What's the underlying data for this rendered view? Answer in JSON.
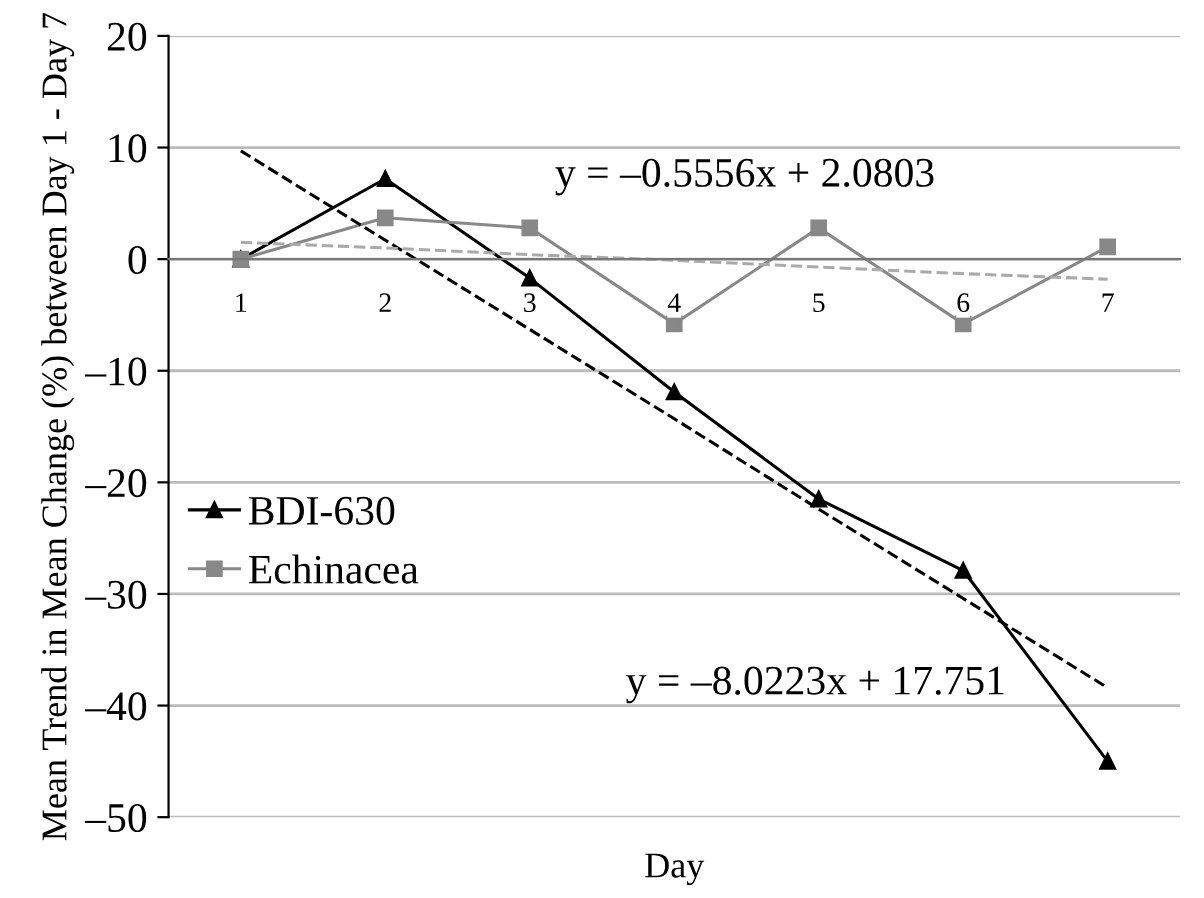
{
  "chart_data": {
    "type": "line",
    "xlabel": "Day",
    "ylabel": "Mean Trend in Mean Change (%) between Day 1 - Day 7",
    "x": [
      1,
      2,
      3,
      4,
      5,
      6,
      7
    ],
    "series": [
      {
        "name": "BDI-630",
        "color": "#000000",
        "marker": "triangle",
        "line_style": "solid",
        "values": [
          0,
          7.2,
          -1.7,
          -11.9,
          -21.5,
          -27.9,
          -45
        ]
      },
      {
        "name": "Echinacea",
        "color": "#888888",
        "marker": "square",
        "line_style": "solid",
        "values": [
          0,
          3.7,
          2.8,
          -5.8,
          2.8,
          -5.8,
          1.1
        ]
      },
      {
        "color": "#000000",
        "marker": "none",
        "line_style": "dashed",
        "values": [
          9.7,
          1.7,
          -6.3,
          -14.3,
          -22.4,
          -30.4,
          -38.4
        ]
      },
      {
        "color": "#aaaaaa",
        "marker": "none",
        "line_style": "dashed",
        "values": [
          1.5,
          1.0,
          0.4,
          -0.1,
          -0.7,
          -1.3,
          -1.8
        ]
      }
    ],
    "xlim": [
      0.5,
      7.5
    ],
    "xticks": [
      1,
      2,
      3,
      4,
      5,
      6,
      7
    ],
    "ylim": [
      -50,
      20
    ],
    "yticks": [
      {
        "value": -50,
        "label": "–50"
      },
      {
        "value": -40,
        "label": "–40"
      },
      {
        "value": -30,
        "label": "–30"
      },
      {
        "value": -20,
        "label": "–20"
      },
      {
        "value": -10,
        "label": "–10"
      },
      0,
      10,
      20
    ],
    "grid": "y",
    "legend": "left",
    "annotations": [
      "y = –0.5556x + 2.0803",
      "y = –8.0223x + 17.751"
    ]
  }
}
